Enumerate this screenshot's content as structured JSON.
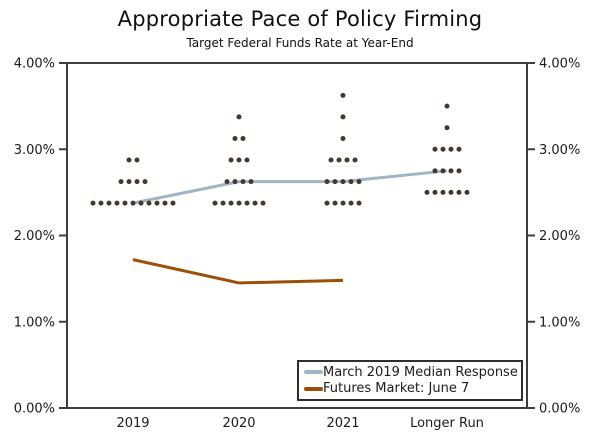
{
  "title": "Appropriate Pace of Policy Firming",
  "subtitle": "Target Federal Funds Rate at Year-End",
  "legend": {
    "items": [
      {
        "label": "March 2019 Median Response",
        "color": "#9fb5c4"
      },
      {
        "label": "Futures Market: June 7",
        "color": "#9d4f08"
      }
    ]
  },
  "chart_data": {
    "type": "scatter",
    "title": "Appropriate Pace of Policy Firming",
    "subtitle": "Target Federal Funds Rate at Year-End",
    "categories": [
      "2019",
      "2020",
      "2021",
      "Longer Run"
    ],
    "y_axis": {
      "min": 0,
      "max": 4,
      "tick_step": 1,
      "tick_labels": [
        "0.00%",
        "1.00%",
        "2.00%",
        "3.00%",
        "4.00%"
      ],
      "label_sides": [
        "left",
        "right"
      ],
      "grid": false
    },
    "dot_color": "#43372e",
    "dot_clusters": [
      {
        "category": "2019",
        "dots": [
          {
            "value": 2.375,
            "count": 11
          },
          {
            "value": 2.625,
            "count": 4
          },
          {
            "value": 2.875,
            "count": 2
          }
        ]
      },
      {
        "category": "2020",
        "dots": [
          {
            "value": 2.375,
            "count": 7
          },
          {
            "value": 2.625,
            "count": 4
          },
          {
            "value": 2.875,
            "count": 3
          },
          {
            "value": 3.125,
            "count": 2
          },
          {
            "value": 3.375,
            "count": 1
          }
        ]
      },
      {
        "category": "2021",
        "dots": [
          {
            "value": 2.375,
            "count": 5
          },
          {
            "value": 2.625,
            "count": 5
          },
          {
            "value": 2.875,
            "count": 4
          },
          {
            "value": 3.125,
            "count": 1
          },
          {
            "value": 3.375,
            "count": 1
          },
          {
            "value": 3.625,
            "count": 1
          }
        ]
      },
      {
        "category": "Longer Run",
        "dots": [
          {
            "value": 2.5,
            "count": 6
          },
          {
            "value": 2.75,
            "count": 4
          },
          {
            "value": 3.0,
            "count": 4
          },
          {
            "value": 3.25,
            "count": 1
          },
          {
            "value": 3.5,
            "count": 1
          }
        ]
      }
    ],
    "series": [
      {
        "name": "March 2019 Median Response",
        "type": "line",
        "color": "#9fb5c4",
        "values": [
          2.375,
          2.625,
          2.625,
          2.75
        ]
      },
      {
        "name": "Futures Market: June 7",
        "type": "line",
        "color": "#9d4f08",
        "values": [
          1.72,
          1.45,
          1.48,
          null
        ]
      }
    ],
    "legend_position": "inside-bottom-right"
  }
}
